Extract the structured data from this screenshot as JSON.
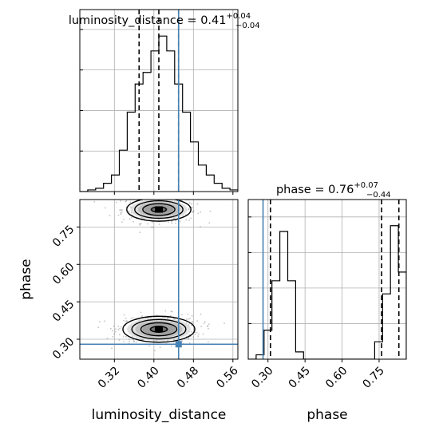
{
  "chart_data": {
    "type": "corner",
    "parameters": [
      "luminosity_distance",
      "phase"
    ],
    "truths": {
      "luminosity_distance": 0.45,
      "phase": 0.28
    },
    "panels": [
      {
        "id": "hist-luminosity_distance",
        "type": "histogram",
        "param": "luminosity_distance",
        "title": {
          "prefix": "luminosity_distance = ",
          "value": "0.41",
          "plus": "+0.04",
          "minus": "−0.04"
        },
        "xlim": [
          0.25,
          0.57
        ],
        "xticks": [
          0.32,
          0.4,
          0.48,
          0.56
        ],
        "ylim": [
          0,
          1
        ],
        "bin_edges": [
          0.25,
          0.266,
          0.282,
          0.298,
          0.314,
          0.33,
          0.346,
          0.362,
          0.378,
          0.394,
          0.41,
          0.426,
          0.442,
          0.458,
          0.474,
          0.49,
          0.506,
          0.522,
          0.538,
          0.554,
          0.57
        ],
        "counts": [
          0,
          0.01,
          0.02,
          0.05,
          0.1,
          0.25,
          0.48,
          0.65,
          0.72,
          0.85,
          0.94,
          0.85,
          0.65,
          0.48,
          0.3,
          0.16,
          0.1,
          0.05,
          0.02,
          0.01
        ],
        "quantiles": [
          0.37,
          0.41,
          0.45
        ],
        "truth": 0.45
      },
      {
        "id": "hist-phase",
        "type": "histogram",
        "param": "phase",
        "title": {
          "prefix": "phase = ",
          "value": "0.76",
          "plus": "+0.07",
          "minus": "−0.44"
        },
        "xlim": [
          0.22,
          0.86
        ],
        "xticks": [
          0.3,
          0.45,
          0.6,
          0.75
        ],
        "ylim": [
          0,
          1
        ],
        "bin_edges": [
          0.22,
          0.252,
          0.284,
          0.316,
          0.348,
          0.38,
          0.412,
          0.444,
          0.476,
          0.508,
          0.54,
          0.572,
          0.604,
          0.636,
          0.668,
          0.7,
          0.732,
          0.764,
          0.796,
          0.828,
          0.86
        ],
        "counts": [
          0,
          0.03,
          0.2,
          0.54,
          0.88,
          0.54,
          0.05,
          0,
          0,
          0,
          0,
          0,
          0,
          0,
          0,
          0,
          0.12,
          0.45,
          0.92,
          0.6
        ],
        "quantiles": [
          0.31,
          0.76,
          0.83
        ],
        "truth": 0.28
      },
      {
        "id": "scatter-luminosity_distance-phase",
        "type": "2d-contour",
        "x": "luminosity_distance",
        "y": "phase",
        "xlim": [
          0.25,
          0.57
        ],
        "ylim": [
          0.22,
          0.86
        ],
        "xticks": [
          0.32,
          0.4,
          0.48,
          0.56
        ],
        "yticks": [
          0.3,
          0.45,
          0.6,
          0.75
        ],
        "modes": [
          {
            "x": 0.41,
            "y": 0.82,
            "sx": 0.025,
            "sy": 0.018
          },
          {
            "x": 0.41,
            "y": 0.34,
            "sx": 0.028,
            "sy": 0.02
          }
        ],
        "truth": {
          "x": 0.45,
          "y": 0.28
        }
      }
    ],
    "xlabels": [
      "luminosity_distance",
      "phase"
    ],
    "ylabels": [
      "phase"
    ]
  },
  "colors": {
    "truth": "#4682b4",
    "hist": "#000000",
    "grid": "#b0b0b0",
    "density": "#000000"
  }
}
